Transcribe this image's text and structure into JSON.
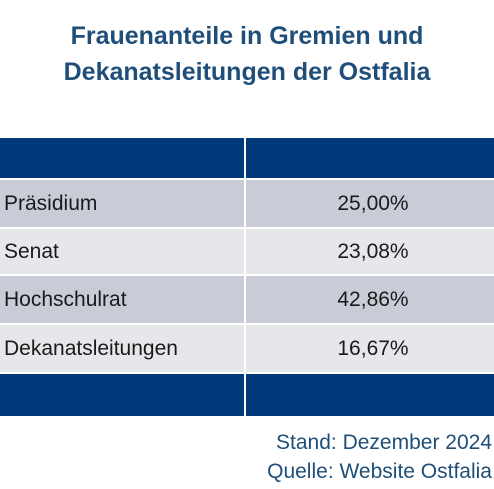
{
  "title": {
    "line1": "Frauenanteile in Gremien und",
    "line2": "Dekanatsleitungen der Ostfalia"
  },
  "chart_data": {
    "type": "table",
    "columns": [
      "",
      ""
    ],
    "rows": [
      {
        "label": "Präsidium",
        "value": "25,00%"
      },
      {
        "label": "Senat",
        "value": "23,08%"
      },
      {
        "label": "Hochschulrat",
        "value": "42,86%"
      },
      {
        "label": "Dekanatsleitungen",
        "value": "16,67%"
      }
    ]
  },
  "notes": {
    "stand": "Stand: Dezember 2024",
    "quelle": "Quelle: Website Ostfalia"
  },
  "colors": {
    "title": "#1f4e79",
    "header_bar": "#003a7a",
    "row_dark": "#c9ccd6",
    "row_light": "#e6e7ea"
  }
}
